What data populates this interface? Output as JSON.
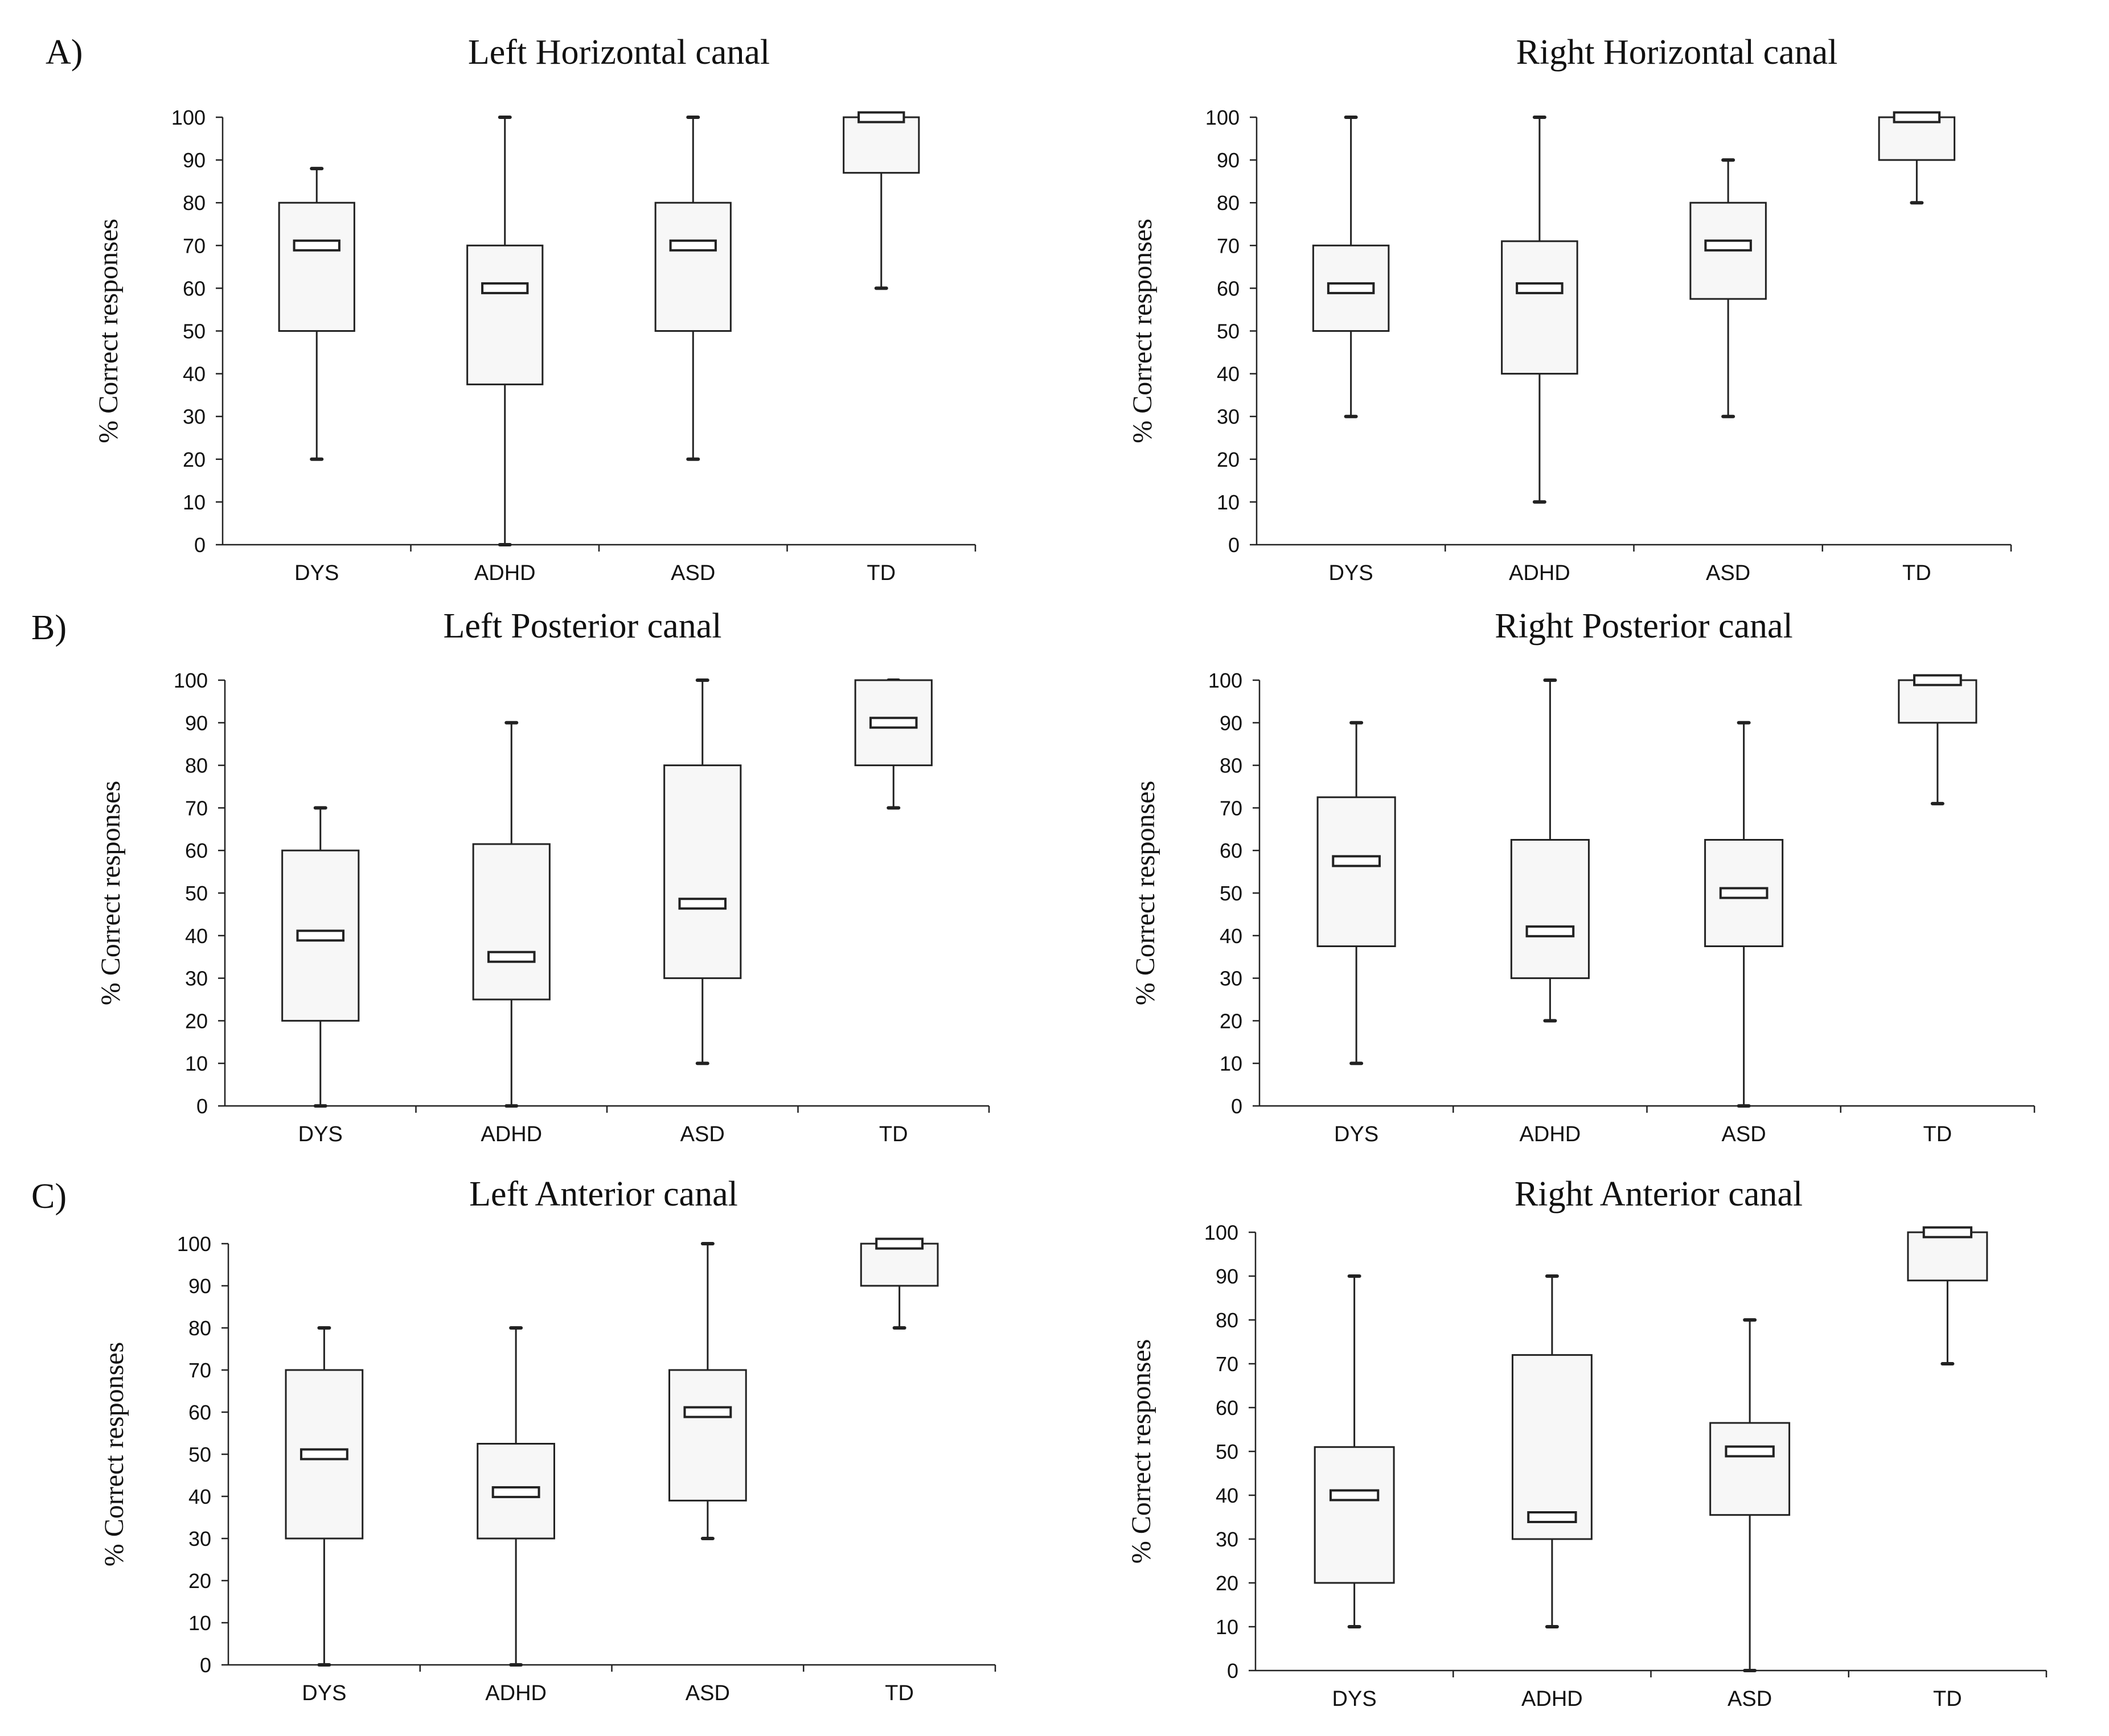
{
  "panel_labels": [
    "A)",
    "B)",
    "C)"
  ],
  "chart_data": [
    {
      "type": "box",
      "title": "Left Horizontal canal",
      "ylabel": "% Correct responses",
      "ylim": [
        0,
        100
      ],
      "yticks": [
        "0",
        "10",
        "20",
        "30",
        "40",
        "50",
        "60",
        "70",
        "80",
        "90",
        "100"
      ],
      "categories": [
        "DYS",
        "ADHD",
        "ASD",
        "TD"
      ],
      "boxes": [
        {
          "min": 20,
          "q1": 50,
          "median": 70,
          "q3": 80,
          "max": 88
        },
        {
          "min": 0,
          "q1": 37.5,
          "median": 60,
          "q3": 70,
          "max": 100
        },
        {
          "min": 20,
          "q1": 50,
          "median": 70,
          "q3": 80,
          "max": 100
        },
        {
          "min": 60,
          "q1": 87,
          "median": 100,
          "q3": 100,
          "max": 100
        }
      ]
    },
    {
      "type": "box",
      "title": "Right Horizontal canal",
      "ylabel": "% Correct responses",
      "ylim": [
        0,
        100
      ],
      "yticks": [
        "0",
        "10",
        "20",
        "30",
        "40",
        "50",
        "60",
        "70",
        "80",
        "90",
        "100"
      ],
      "categories": [
        "DYS",
        "ADHD",
        "ASD",
        "TD"
      ],
      "boxes": [
        {
          "min": 30,
          "q1": 50,
          "median": 60,
          "q3": 70,
          "max": 100
        },
        {
          "min": 10,
          "q1": 40,
          "median": 60,
          "q3": 71,
          "max": 100
        },
        {
          "min": 30,
          "q1": 57.5,
          "median": 70,
          "q3": 80,
          "max": 90
        },
        {
          "min": 80,
          "q1": 90,
          "median": 100,
          "q3": 100,
          "max": 100
        }
      ]
    },
    {
      "type": "box",
      "title": "Left Posterior canal",
      "ylabel": "% Correct responses",
      "ylim": [
        0,
        100
      ],
      "yticks": [
        "0",
        "10",
        "20",
        "30",
        "40",
        "50",
        "60",
        "70",
        "80",
        "90",
        "100"
      ],
      "categories": [
        "DYS",
        "ADHD",
        "ASD",
        "TD"
      ],
      "boxes": [
        {
          "min": 0,
          "q1": 20,
          "median": 40,
          "q3": 60,
          "max": 70
        },
        {
          "min": 0,
          "q1": 25,
          "median": 35,
          "q3": 61.5,
          "max": 90
        },
        {
          "min": 10,
          "q1": 30,
          "median": 47.5,
          "q3": 80,
          "max": 100
        },
        {
          "min": 70,
          "q1": 80,
          "median": 90,
          "q3": 100,
          "max": 100
        }
      ]
    },
    {
      "type": "box",
      "title": "Right Posterior canal",
      "ylabel": "% Correct responses",
      "ylim": [
        0,
        100
      ],
      "yticks": [
        "0",
        "10",
        "20",
        "30",
        "40",
        "50",
        "60",
        "70",
        "80",
        "90",
        "100"
      ],
      "categories": [
        "DYS",
        "ADHD",
        "ASD",
        "TD"
      ],
      "boxes": [
        {
          "min": 10,
          "q1": 37.5,
          "median": 57.5,
          "q3": 72.5,
          "max": 90
        },
        {
          "min": 20,
          "q1": 30,
          "median": 41,
          "q3": 62.5,
          "max": 100
        },
        {
          "min": 0,
          "q1": 37.5,
          "median": 50,
          "q3": 62.5,
          "max": 90
        },
        {
          "min": 71,
          "q1": 90,
          "median": 100,
          "q3": 100,
          "max": 100
        }
      ]
    },
    {
      "type": "box",
      "title": "Left Anterior canal",
      "ylabel": "% Correct responses",
      "ylim": [
        0,
        100
      ],
      "yticks": [
        "0",
        "10",
        "20",
        "30",
        "40",
        "50",
        "60",
        "70",
        "80",
        "90",
        "100"
      ],
      "categories": [
        "DYS",
        "ADHD",
        "ASD",
        "TD"
      ],
      "boxes": [
        {
          "min": 0,
          "q1": 30,
          "median": 50,
          "q3": 70,
          "max": 80
        },
        {
          "min": 0,
          "q1": 30,
          "median": 41,
          "q3": 52.5,
          "max": 80
        },
        {
          "min": 30,
          "q1": 39,
          "median": 60,
          "q3": 70,
          "max": 100
        },
        {
          "min": 80,
          "q1": 90,
          "median": 100,
          "q3": 100,
          "max": 100
        }
      ]
    },
    {
      "type": "box",
      "title": "Right Anterior canal",
      "ylabel": "% Correct responses",
      "ylim": [
        0,
        100
      ],
      "yticks": [
        "0",
        "10",
        "20",
        "30",
        "40",
        "50",
        "60",
        "70",
        "80",
        "90",
        "100"
      ],
      "categories": [
        "DYS",
        "ADHD",
        "ASD",
        "TD"
      ],
      "boxes": [
        {
          "min": 10,
          "q1": 20,
          "median": 40,
          "q3": 51,
          "max": 90
        },
        {
          "min": 10,
          "q1": 30,
          "median": 35,
          "q3": 72,
          "max": 90
        },
        {
          "min": 0,
          "q1": 35.5,
          "median": 50,
          "q3": 56.5,
          "max": 80
        },
        {
          "min": 70,
          "q1": 89,
          "median": 100,
          "q3": 100,
          "max": 100
        }
      ]
    }
  ]
}
